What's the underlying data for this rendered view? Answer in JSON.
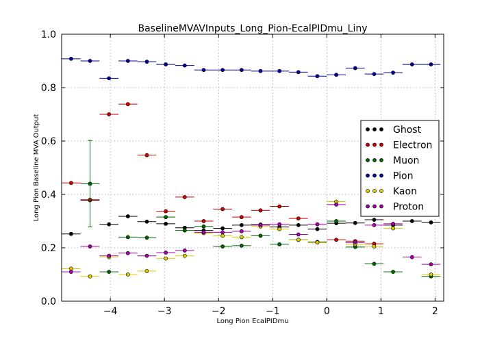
{
  "chart_data": {
    "type": "scatter",
    "title": "BaselineMVAVInputs_Long_Pion-EcalPIDmu_Liny",
    "xlabel": "Long Pion EcalPIDmu",
    "ylabel": "Long Pion Baseline MVA Output",
    "xlim": [
      -4.9,
      2.16
    ],
    "ylim": [
      0.0,
      1.0
    ],
    "xticks": [
      -4,
      -3,
      -2,
      -1,
      0,
      1,
      2
    ],
    "xtick_labels": [
      "−4",
      "−3",
      "−2",
      "−1",
      "0",
      "1",
      "2"
    ],
    "yticks": [
      0.0,
      0.2,
      0.4,
      0.6,
      0.8,
      1.0
    ],
    "ytick_labels": [
      "0.0",
      "0.2",
      "0.4",
      "0.6",
      "0.8",
      "1.0"
    ],
    "grid": true,
    "legend_position": "right",
    "bin_half_width": 0.175,
    "series": [
      {
        "name": "Ghost",
        "color": "#000000",
        "x": [
          -4.725,
          -4.375,
          -4.025,
          -3.675,
          -3.325,
          -2.975,
          -2.625,
          -2.275,
          -1.925,
          -1.575,
          -1.225,
          -0.875,
          -0.525,
          -0.175,
          0.175,
          0.525,
          0.875,
          1.225,
          1.575,
          1.925
        ],
        "y": [
          0.252,
          0.378,
          0.288,
          0.318,
          0.298,
          0.29,
          0.275,
          0.265,
          0.273,
          0.285,
          0.287,
          0.278,
          0.285,
          0.27,
          0.292,
          0.293,
          0.305,
          0.285,
          0.3,
          0.295
        ],
        "err": [
          0,
          0,
          0,
          0,
          0,
          0,
          0,
          0,
          0,
          0,
          0,
          0,
          0,
          0,
          0,
          0,
          0,
          0,
          0,
          0
        ]
      },
      {
        "name": "Electron",
        "color": "#cc0000",
        "x": [
          -4.725,
          -4.375,
          -4.025,
          -3.675,
          -3.325,
          -2.975,
          -2.625,
          -2.275,
          -1.925,
          -1.575,
          -1.225,
          -0.875,
          -0.525,
          -0.175,
          0.175,
          0.525,
          0.875
        ],
        "y": [
          0.443,
          0.38,
          0.7,
          0.738,
          0.547,
          0.337,
          0.39,
          0.3,
          0.345,
          0.315,
          0.34,
          0.355,
          0.31,
          0.22,
          0.23,
          0.225,
          0.215
        ],
        "err": [
          0,
          0,
          0,
          0,
          0,
          0,
          0,
          0,
          0,
          0,
          0,
          0,
          0,
          0,
          0,
          0,
          0
        ]
      },
      {
        "name": "Muon",
        "color": "#006600",
        "x": [
          -4.375,
          -4.025,
          -3.675,
          -3.325,
          -2.975,
          -2.625,
          -2.275,
          -1.925,
          -1.575,
          -1.225,
          -0.875,
          -0.525,
          -0.175,
          0.175,
          0.525,
          0.875,
          1.225,
          1.925
        ],
        "y": [
          0.44,
          0.11,
          0.24,
          0.238,
          0.315,
          0.265,
          0.28,
          0.205,
          0.208,
          0.245,
          0.213,
          0.23,
          0.222,
          0.3,
          0.203,
          0.14,
          0.11,
          0.093
        ],
        "err": [
          0.162,
          0,
          0,
          0,
          0,
          0,
          0,
          0,
          0,
          0,
          0,
          0,
          0,
          0,
          0,
          0,
          0,
          0
        ]
      },
      {
        "name": "Pion",
        "color": "#000099",
        "x": [
          -4.725,
          -4.375,
          -4.025,
          -3.675,
          -3.325,
          -2.975,
          -2.625,
          -2.275,
          -1.925,
          -1.575,
          -1.225,
          -0.875,
          -0.525,
          -0.175,
          0.175,
          0.525,
          0.875,
          1.225,
          1.575,
          1.925
        ],
        "y": [
          0.908,
          0.9,
          0.835,
          0.9,
          0.897,
          0.887,
          0.883,
          0.866,
          0.866,
          0.866,
          0.862,
          0.862,
          0.858,
          0.843,
          0.848,
          0.873,
          0.851,
          0.856,
          0.887,
          0.887
        ],
        "err": [
          0,
          0,
          0,
          0,
          0,
          0,
          0,
          0,
          0,
          0,
          0,
          0,
          0,
          0,
          0,
          0,
          0,
          0,
          0,
          0
        ]
      },
      {
        "name": "Kaon",
        "color": "#ddcc00",
        "x": [
          -4.725,
          -4.375,
          -4.025,
          -3.675,
          -3.325,
          -2.975,
          -2.625,
          -2.275,
          -1.925,
          -1.575,
          -1.225,
          -0.875,
          -0.525,
          -0.175,
          0.175,
          0.525,
          0.875,
          1.225,
          1.925
        ],
        "y": [
          0.122,
          0.093,
          0.165,
          0.1,
          0.113,
          0.16,
          0.17,
          0.255,
          0.245,
          0.24,
          0.28,
          0.27,
          0.23,
          0.22,
          0.373,
          0.213,
          0.205,
          0.273,
          0.1
        ],
        "err": [
          0,
          0,
          0,
          0,
          0,
          0,
          0,
          0,
          0,
          0,
          0,
          0,
          0,
          0,
          0,
          0,
          0,
          0,
          0
        ]
      },
      {
        "name": "Proton",
        "color": "#aa00aa",
        "x": [
          -4.725,
          -4.375,
          -4.025,
          -3.675,
          -3.325,
          -2.975,
          -2.625,
          -2.275,
          -1.925,
          -1.575,
          -1.225,
          -0.875,
          -0.525,
          -0.175,
          0.175,
          0.525,
          0.875,
          1.225,
          1.575,
          1.925
        ],
        "y": [
          0.11,
          0.205,
          0.17,
          0.18,
          0.17,
          0.182,
          0.19,
          0.258,
          0.258,
          0.262,
          0.285,
          0.288,
          0.25,
          0.288,
          0.362,
          0.22,
          0.285,
          0.29,
          0.165,
          0.138
        ],
        "err": [
          0,
          0,
          0,
          0,
          0,
          0,
          0,
          0,
          0,
          0,
          0,
          0,
          0,
          0,
          0,
          0,
          0,
          0,
          0,
          0
        ]
      }
    ]
  }
}
